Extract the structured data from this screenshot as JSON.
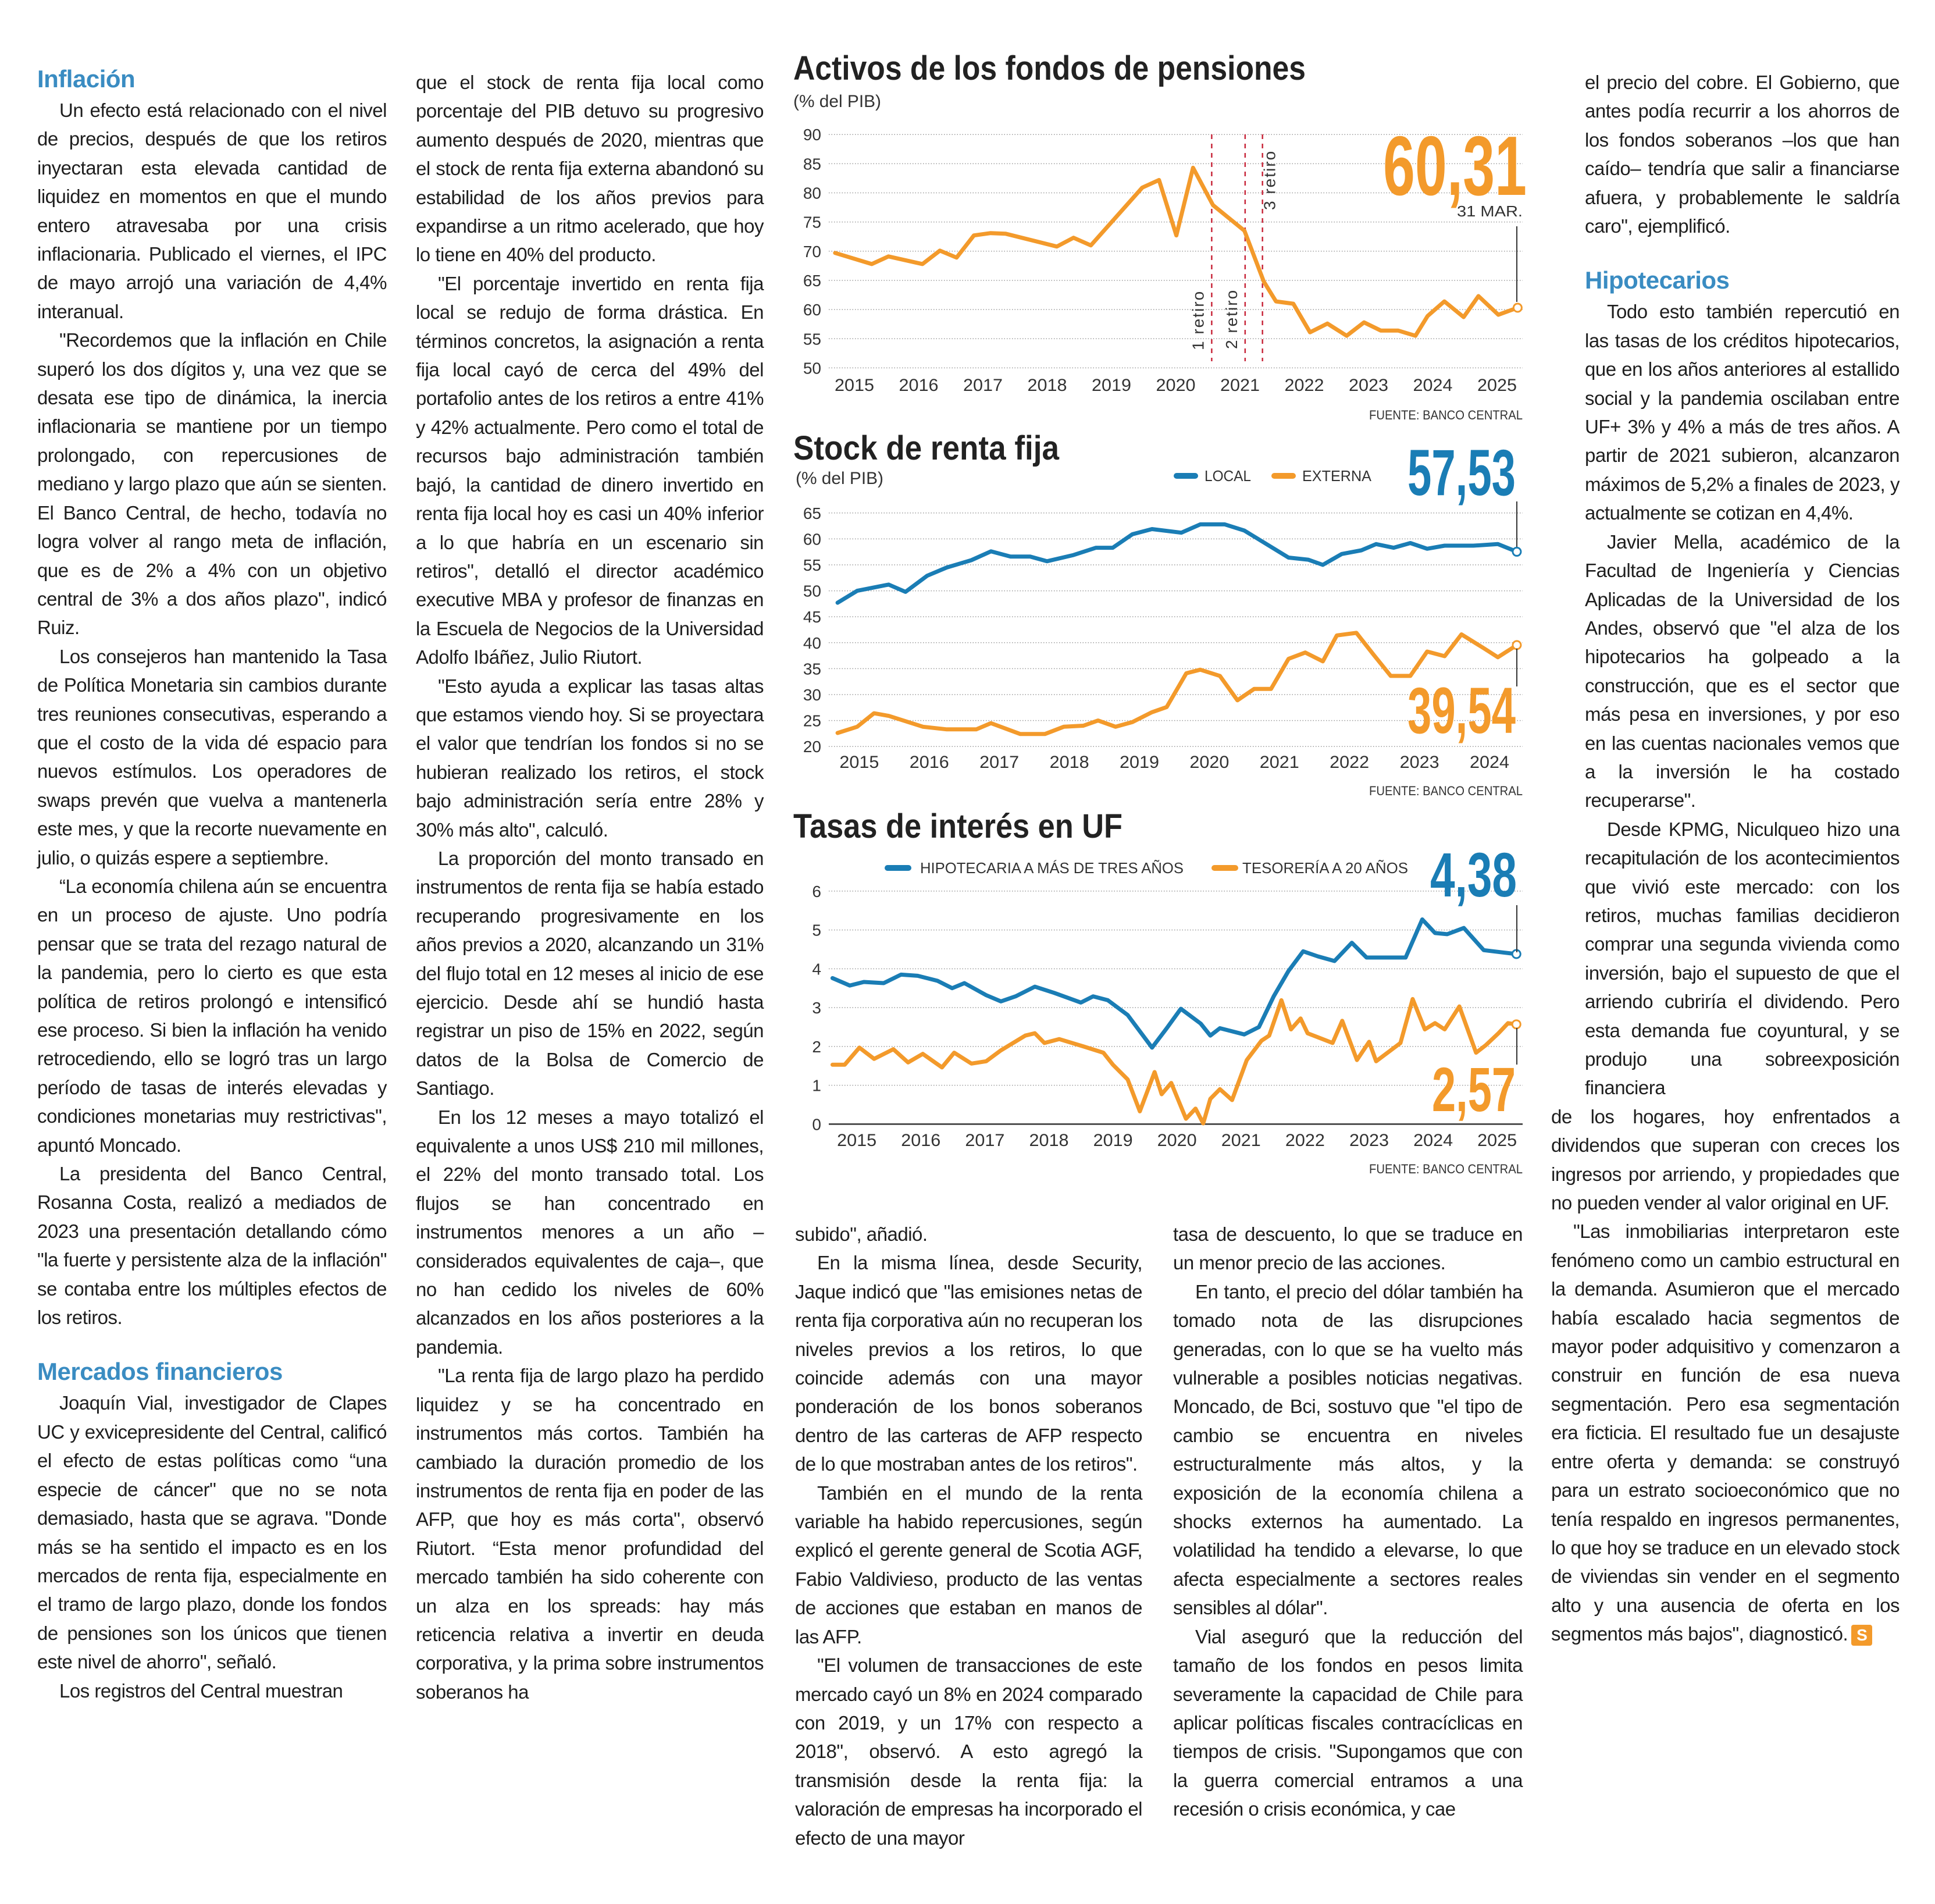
{
  "colors": {
    "orange": "#f39a2b",
    "blue": "#1a7db5",
    "heading": "#3a8cc2",
    "retiro_line": "#c8283c"
  },
  "col1": {
    "heading1": "Inflación",
    "p": [
      "Un efecto está relacionado con el nivel de precios, después de que los retiros inyectaran esta elevada cantidad de liquidez en momentos en que el mundo entero atravesaba por una crisis inflacionaria. Publicado el viernes, el IPC de mayo arrojó una variación de 4,4% interanual.",
      "\"Recordemos que la inflación en Chile superó los dos dígitos y, una vez que se desata ese tipo de dinámica, la inercia inflacionaria se mantiene por un tiempo prolongado, con repercusiones de mediano y largo plazo que aún se sienten. El Banco Central, de hecho, todavía no logra volver al rango meta de inflación, que es de 2% a 4% con un objetivo central de 3% a dos años plazo\", indicó Ruiz.",
      "Los consejeros han mantenido la Tasa de Política Monetaria sin cambios durante tres reuniones consecutivas, esperando a que el costo de la vida dé espacio para nuevos estímulos. Los operadores de swaps prevén que vuelva a mantenerla este mes, y que la recorte nuevamente en julio, o quizás espere a septiembre.",
      "“La economía chilena aún se encuentra en un proceso de ajuste. Uno podría pensar que se trata del rezago natural de la pandemia, pero lo cierto es que esta política de retiros prolongó e intensificó ese proceso. Si bien la inflación ha venido retrocediendo, ello se logró tras un largo período de tasas de interés elevadas y condiciones monetarias muy restrictivas\", apuntó Moncado.",
      "La presidenta del Banco Central, Rosanna Costa, realizó a mediados de 2023 una presentación detallando cómo \"la fuerte y persistente alza de la inflación\" se contaba entre los múltiples efectos de los retiros."
    ],
    "heading2": "Mercados financieros",
    "p2": [
      "Joaquín Vial, investigador de Clapes UC y exvicepresidente del Central, calificó el efecto de estas políticas como “una especie de cáncer\" que no se nota demasiado, hasta que se agrava. \"Donde más se ha sentido el impacto es en los mercados de renta fija, especialmente en el tramo de largo plazo, donde los fondos de pensiones son los únicos que tienen este nivel de ahorro\", señaló.",
      "Los registros del Central muestran"
    ]
  },
  "col2": {
    "p": [
      "que el stock de renta fija local como porcentaje del PIB detuvo su progresivo aumento después de 2020, mientras que el stock de renta fija externa abandonó su estabilidad de los años previos para expandirse a un ritmo acelerado, que hoy lo tiene en 40% del producto.",
      "\"El porcentaje invertido en renta fija local se redujo de forma drástica. En términos concretos, la asignación a renta fija local cayó de cerca del 49% del portafolio antes de los retiros a entre 41% y 42% actualmente. Pero como el total de recursos bajo administración también bajó, la cantidad de dinero invertido en renta fija local hoy es casi un 40% inferior a lo que habría en un escenario sin retiros\", detalló el director académico executive MBA y profesor de finanzas en la Escuela de Negocios de la Universidad Adolfo Ibáñez, Julio Riutort.",
      "\"Esto ayuda a explicar las tasas altas que estamos viendo hoy. Si se proyectara el valor que tendrían los fondos si no se hubieran realizado los retiros, el stock bajo administración sería entre 28% y 30% más alto\", calculó.",
      "La proporción del monto transado en instrumentos de renta fija se había estado recuperando progresivamente en los años previos a 2020, alcanzando un 31% del flujo total en 12 meses al inicio de ese ejercicio. Desde ahí se hundió hasta registrar un piso de 15% en 2022, según datos de la Bolsa de Comercio de Santiago.",
      "En los 12 meses a mayo totalizó el equivalente a unos US$ 210 mil millones, el 22% del monto transado total. Los flujos se han concentrado en instrumentos menores a un año –considerados equivalentes de caja–, que no han cedido los niveles de 60% alcanzados en los años posteriores a la pandemia.",
      "\"La renta fija de largo plazo ha perdido liquidez y se ha concentrado en instrumentos más cortos. También ha cambiado la duración promedio de los instrumentos de renta fija en poder de las AFP, que hoy es más corta\", observó Riutort. “Esta menor profundidad del mercado también ha sido coherente con un alza en los spreads: hay más reticencia relativa a invertir en deuda corporativa, y la prima sobre instrumentos soberanos ha"
    ]
  },
  "col3a": {
    "p": [
      "subido\", añadió.",
      "En la misma línea, desde Security, Jaque indicó que \"las emisiones netas de renta fija corporativa aún no recuperan los niveles previos a los retiros, lo que coincide además con una mayor ponderación de los bonos soberanos dentro de las carteras de AFP respecto de lo que mostraban antes de los retiros\".",
      "También en el mundo de la renta variable ha habido repercusiones, según explicó el gerente general de Scotia AGF, Fabio Valdivieso, producto de las ventas de acciones que estaban en manos de las AFP.",
      "\"El volumen de transacciones de este mercado cayó un 8% en 2024 comparado con 2019, y un 17% con respecto a 2018\", observó. A esto agregó la transmisión desde la renta fija: la valoración de empresas ha incorporado el efecto de una mayor"
    ]
  },
  "col3b": {
    "p": [
      "tasa de descuento, lo que se traduce en un menor precio de las acciones.",
      "En tanto, el precio del dólar también ha tomado nota de las disrupciones generadas, con lo que se ha vuelto más vulnerable a posibles noticias negativas. Moncado, de Bci, sostuvo que \"el tipo de cambio se encuentra en niveles estructuralmente más altos, y la exposición de la economía chilena a shocks externos ha aumentado. La volatilidad ha tendido a elevarse, lo que afecta especialmente a sectores reales sensibles al dólar\".",
      "Vial aseguró que la reducción del tamaño de los fondos en pesos limita severamente la capacidad de Chile para aplicar políticas fiscales contracíclicas en tiempos de crisis. \"Supongamos que con la guerra comercial entramos a una recesión o crisis económica, y cae"
    ]
  },
  "col4": {
    "p0": "el precio del cobre. El Gobierno, que antes podía recurrir a los ahorros de los fondos soberanos –los que han caído– tendría que salir a financiarse afuera, y probablemente le saldría caro\", ejemplificó.",
    "heading": "Hipotecarios",
    "p": [
      "Todo esto también repercutió en las tasas de los créditos hipotecarios, que en los años anteriores al estallido social y la pandemia oscilaban entre UF+ 3% y 4% a más de tres años. A partir de 2021 subieron, alcanzaron máximos de 5,2% a finales de 2023, y actualmente se cotizan en 4,4%.",
      "Javier Mella, académico de la Facultad de Ingeniería y Ciencias Aplicadas de la Universidad de los Andes, observó que \"el alza de los hipotecarios ha golpeado a la construcción, que es el sector que más pesa en inversiones, y por eso en las cuentas nacionales vemos que a la inversión le ha costado recuperarse\".",
      "Desde KPMG, Niculqueo hizo una recapitulación de los acontecimientos que vivió este mercado: con los retiros, muchas familias decidieron comprar una segunda vivienda como inversión, bajo el supuesto de que el arriendo cubriría el dividendo. Pero esta demanda fue coyuntural, y se produjo una sobreexposición financiera"
    ]
  },
  "col5": {
    "p": [
      "de los hogares, hoy enfrentados a dividendos que superan con creces los ingresos por arriendo, y propiedades que no pueden vender al valor original en UF.",
      "\"Las inmobiliarias interpretaron este fenómeno como un cambio estructural en la demanda. Asumieron que el mercado había escalado hacia segmentos de mayor poder adquisitivo y comenzaron a construir en función de esa nueva segmentación. Pero esa segmentación era ficticia. El resultado fue un desajuste entre oferta y demanda: se construyó para un estrato socioeconómico que no tenía respaldo en ingresos permanentes, lo que hoy se traduce en un elevado stock de viviendas sin vender en el segmento alto y una ausencia de oferta en los segmentos más bajos\", diagnosticó."
    ],
    "end_mark": "S"
  },
  "chart_data": [
    {
      "type": "line",
      "title": "Activos de los fondos de pensiones",
      "subtitle": "(% del PIB)",
      "ylim": [
        50,
        90
      ],
      "yticks": [
        50,
        55,
        60,
        65,
        70,
        75,
        80,
        85,
        90
      ],
      "xticks": [
        2015,
        2016,
        2017,
        2018,
        2019,
        2020,
        2021,
        2022,
        2023,
        2024,
        2025
      ],
      "grid": true,
      "source": "FUENTE: BANCO CENTRAL",
      "highlight": {
        "value": "60,31",
        "date": "31 MAR."
      },
      "annotations": [
        {
          "label": "1 retiro",
          "x": 2020.56
        },
        {
          "label": "2 retiro",
          "x": 2021.08
        },
        {
          "label": "3 retiro",
          "x": 2021.35
        }
      ],
      "series": [
        {
          "color": "orange",
          "x": [
            2014.7,
            2015.27,
            2015.53,
            2016.06,
            2016.33,
            2016.59,
            2016.86,
            2017.12,
            2017.35,
            2018.15,
            2018.41,
            2018.68,
            2019.48,
            2019.74,
            2020.01,
            2020.27,
            2020.58,
            2021.07,
            2021.37,
            2021.56,
            2021.83,
            2022.09,
            2022.36,
            2022.66,
            2022.93,
            2023.19,
            2023.46,
            2023.73,
            2023.92,
            2024.18,
            2024.48,
            2024.71,
            2025.02,
            2025.32
          ],
          "y": [
            69.7,
            67.8,
            69.1,
            67.8,
            70.1,
            68.9,
            72.7,
            73.1,
            73.0,
            70.8,
            72.3,
            71.0,
            80.9,
            82.2,
            72.7,
            84.3,
            77.9,
            73.5,
            64.8,
            61.4,
            61.0,
            56.1,
            57.6,
            55.5,
            57.8,
            56.4,
            56.4,
            55.5,
            58.9,
            61.4,
            58.7,
            62.3,
            59.1,
            60.31
          ]
        }
      ]
    },
    {
      "type": "line",
      "title": "Stock de renta fija",
      "subtitle": "(% del PIB)",
      "ylim": [
        20,
        65
      ],
      "yticks": [
        20,
        25,
        30,
        35,
        40,
        45,
        50,
        55,
        60,
        65
      ],
      "xticks": [
        2015,
        2016,
        2017,
        2018,
        2019,
        2020,
        2021,
        2022,
        2023,
        2024
      ],
      "grid": true,
      "legend": "top-right",
      "source": "FUENTE: BANCO CENTRAL",
      "series": [
        {
          "name": "LOCAL",
          "color": "blue",
          "highlight": "57,53",
          "x": [
            2014.69,
            2014.97,
            2015.42,
            2015.66,
            2015.97,
            2016.25,
            2016.6,
            2016.88,
            2017.16,
            2017.44,
            2017.68,
            2018.06,
            2018.38,
            2018.62,
            2018.9,
            2019.18,
            2019.6,
            2019.87,
            2020.22,
            2020.5,
            2021.13,
            2021.41,
            2021.62,
            2021.89,
            2022.17,
            2022.38,
            2022.63,
            2022.87,
            2023.11,
            2023.36,
            2023.77,
            2024.12,
            2024.39
          ],
          "y": [
            47.7,
            50.0,
            51.2,
            49.8,
            52.9,
            54.5,
            55.9,
            57.6,
            56.6,
            56.6,
            55.7,
            56.9,
            58.3,
            58.3,
            60.9,
            61.9,
            61.2,
            62.8,
            62.8,
            61.6,
            56.4,
            56.0,
            55.0,
            57.1,
            57.8,
            59.0,
            58.3,
            59.2,
            58.1,
            58.7,
            58.7,
            59.0,
            57.53
          ]
        },
        {
          "name": "EXTERNA",
          "color": "orange",
          "highlight": "39,54",
          "x": [
            2014.69,
            2014.97,
            2015.21,
            2015.42,
            2015.91,
            2016.25,
            2016.67,
            2016.88,
            2017.3,
            2017.65,
            2017.92,
            2018.2,
            2018.41,
            2018.66,
            2018.9,
            2019.18,
            2019.39,
            2019.67,
            2019.87,
            2020.15,
            2020.4,
            2020.64,
            2020.88,
            2021.13,
            2021.37,
            2021.62,
            2021.82,
            2022.1,
            2022.35,
            2022.59,
            2022.87,
            2023.11,
            2023.36,
            2023.6,
            2023.91,
            2024.12,
            2024.39
          ],
          "y": [
            22.6,
            23.8,
            26.4,
            25.9,
            23.8,
            23.3,
            23.3,
            24.5,
            22.4,
            22.4,
            23.8,
            24.0,
            25.0,
            23.8,
            24.7,
            26.6,
            27.6,
            34.1,
            34.8,
            33.6,
            28.9,
            31.1,
            31.1,
            36.9,
            38.1,
            36.4,
            41.4,
            41.9,
            37.6,
            33.6,
            33.6,
            38.3,
            37.4,
            41.6,
            39.0,
            37.2,
            39.54
          ]
        }
      ]
    },
    {
      "type": "line",
      "title": "Tasas de interés en UF",
      "ylim": [
        0,
        6
      ],
      "yticks": [
        0,
        1,
        2,
        3,
        4,
        5,
        6
      ],
      "xticks": [
        2015,
        2016,
        2017,
        2018,
        2019,
        2020,
        2021,
        2022,
        2023,
        2024,
        2025
      ],
      "grid": true,
      "legend": "top",
      "source": "FUENTE: BANCO CENTRAL",
      "series": [
        {
          "name": "HIPOTECARIA A MÁS DE TRES AÑOS",
          "color": "blue",
          "highlight": "4,38",
          "x": [
            2014.62,
            2014.89,
            2015.11,
            2015.42,
            2015.69,
            2015.95,
            2016.26,
            2016.49,
            2016.68,
            2017.02,
            2017.25,
            2017.48,
            2017.78,
            2018.08,
            2018.5,
            2018.69,
            2018.92,
            2019.23,
            2019.61,
            2019.84,
            2020.06,
            2020.37,
            2020.52,
            2020.67,
            2021.05,
            2021.28,
            2021.51,
            2021.74,
            2021.97,
            2022.2,
            2022.46,
            2022.73,
            2022.96,
            2023.19,
            2023.57,
            2023.83,
            2024.03,
            2024.22,
            2024.48,
            2024.79,
            2025.09,
            2025.3
          ],
          "y": [
            3.76,
            3.57,
            3.66,
            3.63,
            3.85,
            3.82,
            3.69,
            3.5,
            3.63,
            3.32,
            3.16,
            3.29,
            3.54,
            3.38,
            3.13,
            3.29,
            3.19,
            2.81,
            1.97,
            2.47,
            2.97,
            2.59,
            2.28,
            2.47,
            2.31,
            2.5,
            3.29,
            3.94,
            4.45,
            4.32,
            4.2,
            4.67,
            4.29,
            4.29,
            4.29,
            5.27,
            4.92,
            4.89,
            5.05,
            4.48,
            4.42,
            4.38
          ]
        },
        {
          "name": "TESORERÍA A 20 AÑOS",
          "color": "orange",
          "highlight": "2,57",
          "x": [
            2014.62,
            2014.81,
            2015.04,
            2015.27,
            2015.57,
            2015.8,
            2016.03,
            2016.33,
            2016.52,
            2016.79,
            2017.02,
            2017.25,
            2017.63,
            2017.78,
            2017.93,
            2018.16,
            2018.54,
            2018.85,
            2019.0,
            2019.23,
            2019.42,
            2019.65,
            2019.76,
            2019.91,
            2020.14,
            2020.29,
            2020.41,
            2020.52,
            2020.67,
            2020.86,
            2021.09,
            2021.32,
            2021.44,
            2021.63,
            2021.78,
            2021.93,
            2022.04,
            2022.43,
            2022.58,
            2022.81,
            2023.0,
            2023.11,
            2023.49,
            2023.68,
            2023.87,
            2024.03,
            2024.18,
            2024.41,
            2024.67,
            2024.82,
            2025.02,
            2025.17,
            2025.3
          ],
          "y": [
            1.53,
            1.53,
            1.97,
            1.68,
            1.93,
            1.59,
            1.81,
            1.46,
            1.84,
            1.56,
            1.62,
            1.9,
            2.28,
            2.34,
            2.09,
            2.19,
            2.0,
            1.84,
            1.53,
            1.15,
            0.33,
            1.34,
            0.77,
            1.06,
            0.14,
            0.4,
            0.02,
            0.65,
            0.9,
            0.62,
            1.65,
            2.15,
            2.28,
            3.19,
            2.44,
            2.72,
            2.34,
            2.09,
            2.66,
            1.65,
            2.12,
            1.62,
            2.09,
            3.22,
            2.44,
            2.6,
            2.44,
            3.03,
            1.84,
            2.03,
            2.34,
            2.6,
            2.57
          ]
        }
      ]
    }
  ]
}
